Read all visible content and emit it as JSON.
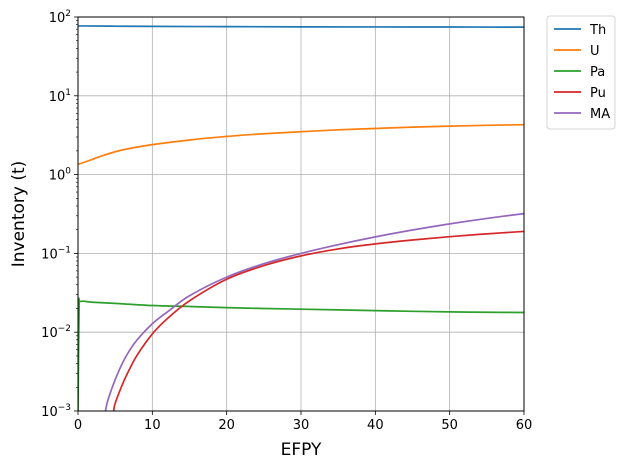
{
  "chart_data": {
    "type": "line",
    "xlabel": "EFPY",
    "ylabel": "Inventory (t)",
    "xlim": [
      0,
      60
    ],
    "ylim": [
      0.001,
      100
    ],
    "yscale": "log",
    "grid": true,
    "legend_placement": "outside-top-right",
    "x_ticks": [
      "0",
      "10",
      "20",
      "30",
      "40",
      "50",
      "60"
    ],
    "y_ticks": [
      {
        "base": "10",
        "exp": "−3",
        "value": 0.001
      },
      {
        "base": "10",
        "exp": "−2",
        "value": 0.01
      },
      {
        "base": "10",
        "exp": "−1",
        "value": 0.1
      },
      {
        "base": "10",
        "exp": "0",
        "value": 1
      },
      {
        "base": "10",
        "exp": "1",
        "value": 10
      },
      {
        "base": "10",
        "exp": "2",
        "value": 100
      }
    ],
    "series": [
      {
        "name": "Th",
        "color": "#1f77b4",
        "x": [
          0,
          1,
          5,
          10,
          20,
          30,
          40,
          50,
          60
        ],
        "y": [
          77,
          77,
          76.5,
          76,
          75.5,
          75,
          74.8,
          74.6,
          74.4
        ]
      },
      {
        "name": "U",
        "color": "#ff7f0e",
        "x": [
          0,
          1,
          2,
          3,
          5,
          7,
          10,
          15,
          20,
          25,
          30,
          35,
          40,
          45,
          50,
          55,
          60
        ],
        "y": [
          1.35,
          1.45,
          1.57,
          1.7,
          1.95,
          2.15,
          2.4,
          2.75,
          3.05,
          3.3,
          3.5,
          3.7,
          3.85,
          4.0,
          4.12,
          4.22,
          4.3
        ]
      },
      {
        "name": "Pa",
        "color": "#2ca02c",
        "x": [
          0,
          0.15,
          0.3,
          2,
          5,
          10,
          15,
          20,
          25,
          30,
          35,
          40,
          45,
          50,
          55,
          60
        ],
        "y": [
          0.001,
          0.02,
          0.0245,
          0.024,
          0.0232,
          0.0218,
          0.0212,
          0.0205,
          0.02,
          0.0196,
          0.0192,
          0.0188,
          0.0184,
          0.0181,
          0.0179,
          0.0178
        ]
      },
      {
        "name": "Pu",
        "color": "#d62728",
        "x": [
          4.8,
          5,
          6,
          7,
          8,
          10,
          12,
          15,
          20,
          25,
          30,
          35,
          40,
          45,
          50,
          55,
          60
        ],
        "y": [
          0.001,
          0.00125,
          0.0022,
          0.0035,
          0.0052,
          0.0095,
          0.0148,
          0.025,
          0.047,
          0.07,
          0.093,
          0.114,
          0.132,
          0.148,
          0.163,
          0.177,
          0.19
        ]
      },
      {
        "name": "MA",
        "color": "#9467bd",
        "x": [
          3.7,
          4,
          5,
          6,
          7,
          8,
          10,
          12,
          15,
          20,
          25,
          30,
          35,
          40,
          45,
          50,
          55,
          60
        ],
        "y": [
          0.001,
          0.00135,
          0.0025,
          0.0041,
          0.006,
          0.0081,
          0.0128,
          0.018,
          0.029,
          0.05,
          0.074,
          0.1,
          0.129,
          0.162,
          0.198,
          0.237,
          0.278,
          0.32
        ]
      }
    ]
  }
}
